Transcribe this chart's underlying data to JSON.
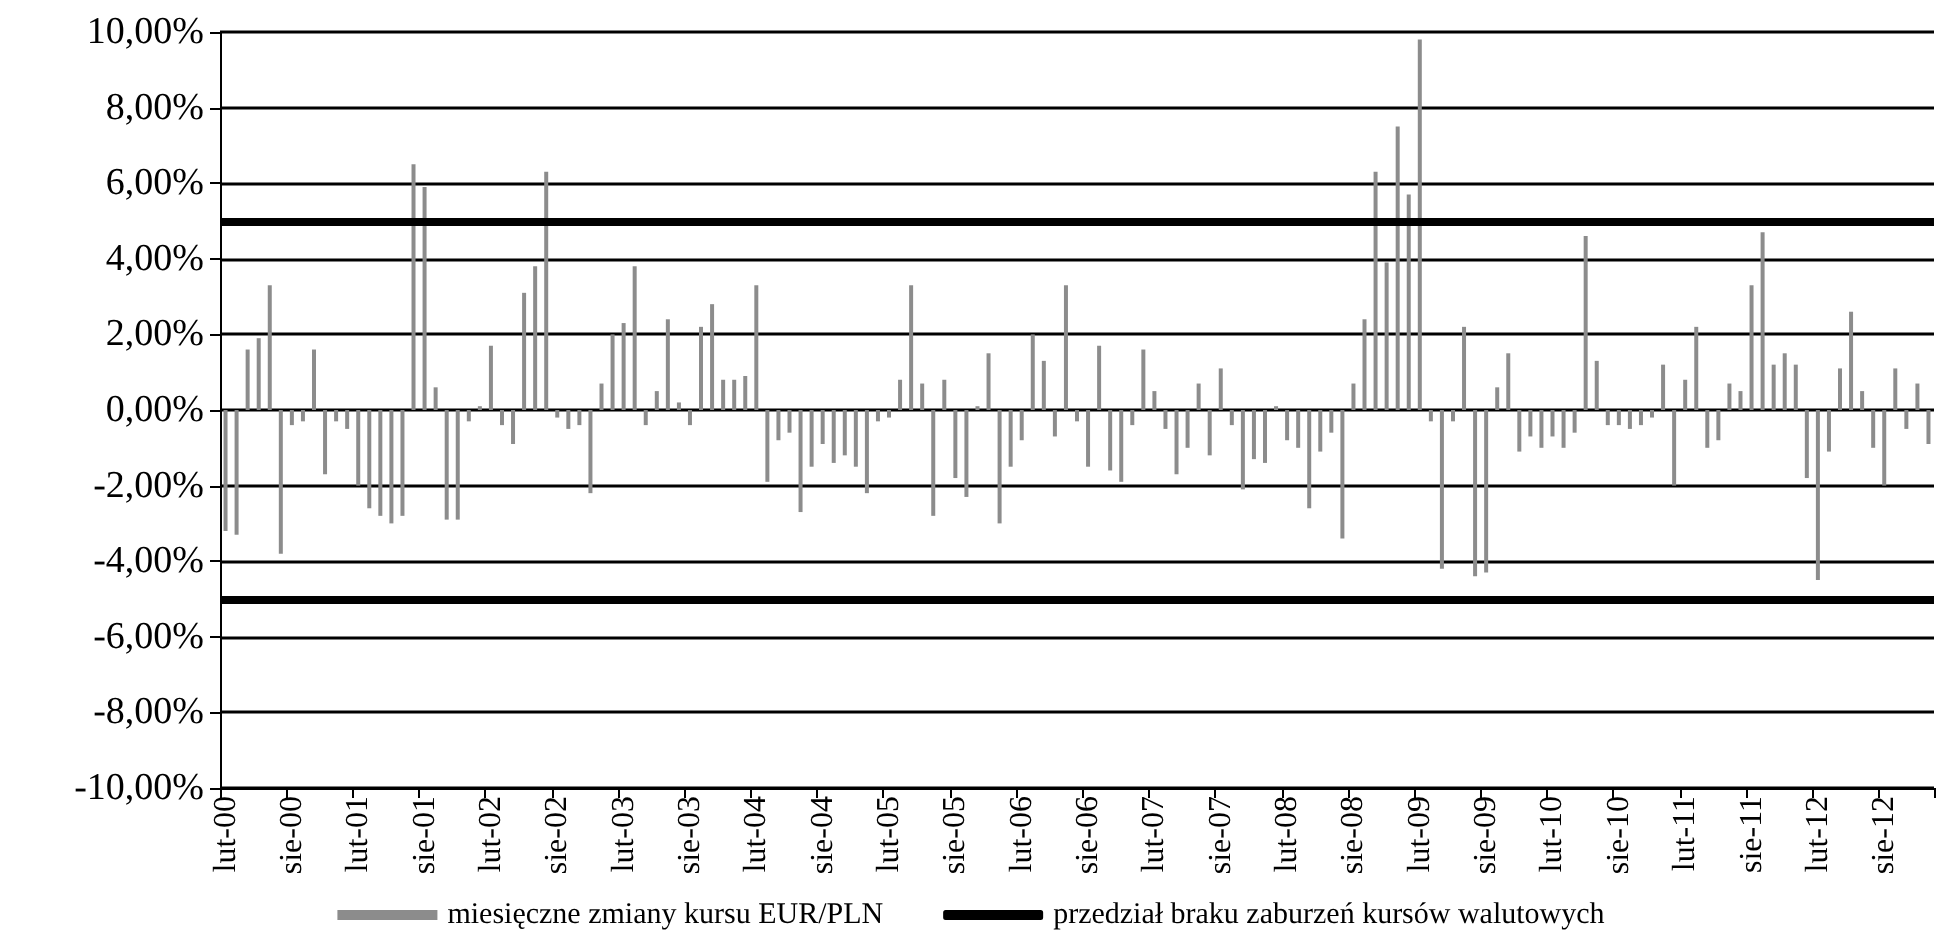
{
  "chart_data": {
    "type": "bar",
    "categories": [
      "lut-00",
      null,
      null,
      null,
      null,
      null,
      "sie-00",
      null,
      null,
      null,
      null,
      null,
      "lut-01",
      null,
      null,
      null,
      null,
      null,
      "sie-01",
      null,
      null,
      null,
      null,
      null,
      "lut-02",
      null,
      null,
      null,
      null,
      null,
      "sie-02",
      null,
      null,
      null,
      null,
      null,
      "lut-03",
      null,
      null,
      null,
      null,
      null,
      "sie-03",
      null,
      null,
      null,
      null,
      null,
      "lut-04",
      null,
      null,
      null,
      null,
      null,
      "sie-04",
      null,
      null,
      null,
      null,
      null,
      "lut-05",
      null,
      null,
      null,
      null,
      null,
      "sie-05",
      null,
      null,
      null,
      null,
      null,
      "lut-06",
      null,
      null,
      null,
      null,
      null,
      "sie-06",
      null,
      null,
      null,
      null,
      null,
      "lut-07",
      null,
      null,
      null,
      null,
      null,
      "sie-07",
      null,
      null,
      null,
      null,
      null,
      "lut-08",
      null,
      null,
      null,
      null,
      null,
      "sie-08",
      null,
      null,
      null,
      null,
      null,
      "lut-09",
      null,
      null,
      null,
      null,
      null,
      "sie-09",
      null,
      null,
      null,
      null,
      null,
      "lut-10",
      null,
      null,
      null,
      null,
      null,
      "sie-10",
      null,
      null,
      null,
      null,
      null,
      "lut-11",
      null,
      null,
      null,
      null,
      null,
      "sie-11",
      null,
      null,
      null,
      null,
      null,
      "lut-12",
      null,
      null,
      null,
      null,
      null,
      "sie-12",
      null,
      null,
      null,
      null
    ],
    "series": [
      {
        "name": "miesięczne zmiany kursu EUR/PLN",
        "color": "#8c8c8c",
        "values": [
          -3.2,
          -3.3,
          1.6,
          1.9,
          3.3,
          -3.8,
          -0.4,
          -0.3,
          1.6,
          -1.7,
          -0.3,
          -0.5,
          -2.0,
          -2.6,
          -2.8,
          -3.0,
          -2.8,
          6.5,
          5.9,
          0.6,
          -2.9,
          -2.9,
          -0.3,
          0.1,
          1.7,
          -0.4,
          -0.9,
          3.1,
          3.8,
          6.3,
          -0.2,
          -0.5,
          -0.4,
          -2.2,
          0.7,
          2.0,
          2.3,
          3.8,
          -0.4,
          0.5,
          2.4,
          0.2,
          -0.4,
          2.2,
          2.8,
          0.8,
          0.8,
          0.9,
          3.3,
          -1.9,
          -0.8,
          -0.6,
          -2.7,
          -1.5,
          -0.9,
          -1.4,
          -1.2,
          -1.5,
          -2.2,
          -0.3,
          -0.2,
          0.8,
          3.3,
          0.7,
          -2.8,
          0.8,
          -1.8,
          -2.3,
          0.1,
          1.5,
          -3.0,
          -1.5,
          -0.8,
          2.0,
          1.3,
          -0.7,
          3.3,
          -0.3,
          -1.5,
          1.7,
          -1.6,
          -1.9,
          -0.4,
          1.6,
          0.5,
          -0.5,
          -1.7,
          -1.0,
          0.7,
          -1.2,
          1.1,
          -0.4,
          -2.1,
          -1.3,
          -1.4,
          0.1,
          -0.8,
          -1.0,
          -2.6,
          -1.1,
          -0.6,
          -3.4,
          0.7,
          2.4,
          6.3,
          3.9,
          7.5,
          5.7,
          9.8,
          -0.3,
          -4.2,
          -0.3,
          2.2,
          -4.4,
          -4.3,
          0.6,
          1.5,
          -1.1,
          -0.7,
          -1.0,
          -0.7,
          -1.0,
          -0.6,
          4.6,
          1.3,
          -0.4,
          -0.4,
          -0.5,
          -0.4,
          -0.2,
          1.2,
          -2.0,
          0.8,
          2.2,
          -1.0,
          -0.8,
          0.7,
          0.5,
          3.3,
          4.7,
          1.2,
          1.5,
          1.2,
          -1.8,
          -4.5,
          -1.1,
          1.1,
          2.6,
          0.5,
          -1.0,
          -2.0,
          1.1,
          -0.5,
          0.7,
          -0.9
        ]
      }
    ],
    "ref_lines": [
      {
        "axis": "y",
        "value": 5,
        "label": "przedział braku zaburzeń kursów walutowych",
        "color": "#000000"
      },
      {
        "axis": "y",
        "value": -5,
        "color": "#000000"
      }
    ],
    "ylim": [
      -10,
      10
    ],
    "yticks": [
      {
        "value": -10,
        "label": "-10,00%"
      },
      {
        "value": -8,
        "label": "-8,00%"
      },
      {
        "value": -6,
        "label": "-6,00%"
      },
      {
        "value": -4,
        "label": "-4,00%"
      },
      {
        "value": -2,
        "label": "-2,00%"
      },
      {
        "value": 0,
        "label": "0,00%"
      },
      {
        "value": 2,
        "label": "2,00%"
      },
      {
        "value": 4,
        "label": "4,00%"
      },
      {
        "value": 6,
        "label": "6,00%"
      },
      {
        "value": 8,
        "label": "8,00%"
      },
      {
        "value": 10,
        "label": "10,00%"
      }
    ],
    "grid": "y",
    "legend": "bottom"
  }
}
